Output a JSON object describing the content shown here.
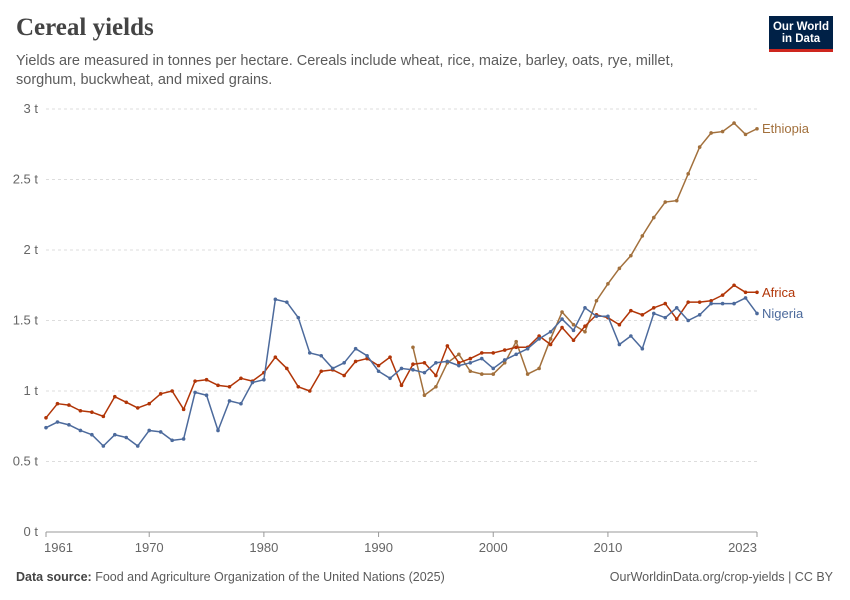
{
  "header": {
    "title": "Cereal yields",
    "subtitle": "Yields are measured in tonnes per hectare. Cereals include wheat, rice, maize, barley, oats, rye, millet, sorghum, buckwheat, and mixed grains.",
    "logo_line1": "Our World",
    "logo_line2": "in Data"
  },
  "footer": {
    "source_label": "Data source:",
    "source_text": "Food and Agriculture Organization of the United Nations (2025)",
    "url": "OurWorldinData.org/crop-yields | CC BY"
  },
  "colors": {
    "ethiopia": "#a2703c",
    "africa": "#b13507",
    "nigeria": "#4c6a9c",
    "grid": "#dddddd",
    "axis": "#999999",
    "brand": "#002147",
    "brand_accent": "#ce261e"
  },
  "chart_data": {
    "type": "line",
    "title": "Cereal yields",
    "xlabel": "",
    "ylabel": "",
    "xlim": [
      1961,
      2023
    ],
    "ylim": [
      0,
      3
    ],
    "y_ticks": [
      0,
      0.5,
      1,
      1.5,
      2,
      2.5,
      3
    ],
    "y_tick_labels": [
      "0 t",
      "0.5 t",
      "1 t",
      "1.5 t",
      "2 t",
      "2.5 t",
      "3 t"
    ],
    "x_ticks": [
      1961,
      1970,
      1980,
      1990,
      2000,
      2010,
      2023
    ],
    "x_tick_labels": [
      "1961",
      "1970",
      "1980",
      "1990",
      "2000",
      "2010",
      "2023"
    ],
    "series": [
      {
        "name": "Ethiopia",
        "color_key": "ethiopia",
        "x": [
          1993,
          1994,
          1995,
          1996,
          1997,
          1998,
          1999,
          2000,
          2001,
          2002,
          2003,
          2004,
          2005,
          2006,
          2007,
          2008,
          2009,
          2010,
          2011,
          2012,
          2013,
          2014,
          2015,
          2016,
          2017,
          2018,
          2019,
          2020,
          2021,
          2022,
          2023
        ],
        "values": [
          1.31,
          0.97,
          1.03,
          1.2,
          1.26,
          1.14,
          1.12,
          1.12,
          1.2,
          1.35,
          1.12,
          1.16,
          1.37,
          1.56,
          1.47,
          1.42,
          1.64,
          1.76,
          1.87,
          1.96,
          2.1,
          2.23,
          2.34,
          2.35,
          2.54,
          2.73,
          2.83,
          2.84,
          2.9,
          2.82,
          2.86
        ]
      },
      {
        "name": "Africa",
        "color_key": "africa",
        "x": [
          1961,
          1962,
          1963,
          1964,
          1965,
          1966,
          1967,
          1968,
          1969,
          1970,
          1971,
          1972,
          1973,
          1974,
          1975,
          1976,
          1977,
          1978,
          1979,
          1980,
          1981,
          1982,
          1983,
          1984,
          1985,
          1986,
          1987,
          1988,
          1989,
          1990,
          1991,
          1992,
          1993,
          1994,
          1995,
          1996,
          1997,
          1998,
          1999,
          2000,
          2001,
          2002,
          2003,
          2004,
          2005,
          2006,
          2007,
          2008,
          2009,
          2010,
          2011,
          2012,
          2013,
          2014,
          2015,
          2016,
          2017,
          2018,
          2019,
          2020,
          2021,
          2022,
          2023
        ],
        "values": [
          0.81,
          0.91,
          0.9,
          0.86,
          0.85,
          0.82,
          0.96,
          0.92,
          0.88,
          0.91,
          0.98,
          1.0,
          0.87,
          1.07,
          1.08,
          1.04,
          1.03,
          1.09,
          1.07,
          1.13,
          1.24,
          1.16,
          1.03,
          1.0,
          1.14,
          1.15,
          1.11,
          1.21,
          1.23,
          1.18,
          1.24,
          1.04,
          1.19,
          1.2,
          1.11,
          1.32,
          1.2,
          1.23,
          1.27,
          1.27,
          1.29,
          1.31,
          1.31,
          1.39,
          1.33,
          1.45,
          1.36,
          1.46,
          1.54,
          1.52,
          1.47,
          1.57,
          1.54,
          1.59,
          1.62,
          1.51,
          1.63,
          1.63,
          1.64,
          1.68,
          1.75,
          1.7,
          1.7
        ]
      },
      {
        "name": "Nigeria",
        "color_key": "nigeria",
        "x": [
          1961,
          1962,
          1963,
          1964,
          1965,
          1966,
          1967,
          1968,
          1969,
          1970,
          1971,
          1972,
          1973,
          1974,
          1975,
          1976,
          1977,
          1978,
          1979,
          1980,
          1981,
          1982,
          1983,
          1984,
          1985,
          1986,
          1987,
          1988,
          1989,
          1990,
          1991,
          1992,
          1993,
          1994,
          1995,
          1996,
          1997,
          1998,
          1999,
          2000,
          2001,
          2002,
          2003,
          2004,
          2005,
          2006,
          2007,
          2008,
          2009,
          2010,
          2011,
          2012,
          2013,
          2014,
          2015,
          2016,
          2017,
          2018,
          2019,
          2020,
          2021,
          2022,
          2023
        ],
        "values": [
          0.74,
          0.78,
          0.76,
          0.72,
          0.69,
          0.61,
          0.69,
          0.67,
          0.61,
          0.72,
          0.71,
          0.65,
          0.66,
          0.99,
          0.97,
          0.72,
          0.93,
          0.91,
          1.06,
          1.08,
          1.65,
          1.63,
          1.52,
          1.27,
          1.25,
          1.16,
          1.2,
          1.3,
          1.25,
          1.14,
          1.09,
          1.16,
          1.15,
          1.13,
          1.2,
          1.21,
          1.18,
          1.2,
          1.23,
          1.16,
          1.22,
          1.26,
          1.3,
          1.37,
          1.42,
          1.51,
          1.43,
          1.59,
          1.53,
          1.53,
          1.33,
          1.39,
          1.3,
          1.55,
          1.52,
          1.59,
          1.5,
          1.54,
          1.62,
          1.62,
          1.62,
          1.66,
          1.55
        ]
      }
    ]
  }
}
